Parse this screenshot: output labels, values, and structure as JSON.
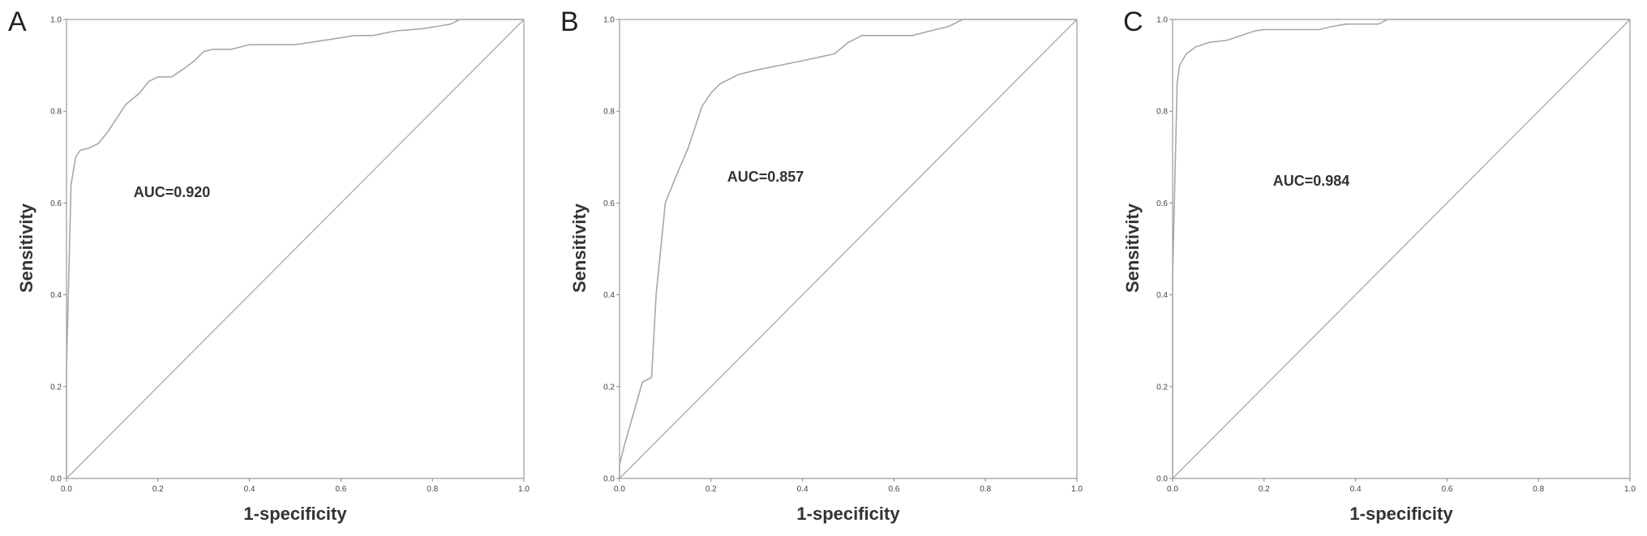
{
  "chart_data": [
    {
      "type": "line",
      "panel": "A",
      "annotation": "AUC=0.920",
      "xlabel": "1-specificity",
      "ylabel": "Sensitivity",
      "xlim": [
        0,
        1
      ],
      "ylim": [
        0,
        1
      ],
      "xticks": [
        "0.0",
        "0.2",
        "0.4",
        "0.6",
        "0.8",
        "1.0"
      ],
      "yticks": [
        "0.0",
        "0.2",
        "0.4",
        "0.6",
        "0.8",
        "1.0"
      ],
      "series": [
        {
          "x": [
            0,
            0,
            0.01,
            0.02,
            0.03,
            0.05,
            0.07,
            0.09,
            0.11,
            0.13,
            0.16,
            0.18,
            0.2,
            0.23,
            0.26,
            0.28,
            0.3,
            0.32,
            0.36,
            0.4,
            0.5,
            0.6,
            0.63,
            0.67,
            0.72,
            0.78,
            0.81,
            0.84,
            0.86,
            1
          ],
          "y": [
            0,
            0.24,
            0.64,
            0.7,
            0.715,
            0.72,
            0.73,
            0.755,
            0.785,
            0.815,
            0.84,
            0.865,
            0.875,
            0.875,
            0.895,
            0.91,
            0.93,
            0.935,
            0.935,
            0.945,
            0.945,
            0.96,
            0.965,
            0.965,
            0.975,
            0.98,
            0.985,
            0.99,
            1.0,
            1.0
          ]
        },
        {
          "x": [
            0,
            1
          ],
          "y": [
            0,
            1
          ]
        }
      ]
    },
    {
      "type": "line",
      "panel": "B",
      "annotation": "AUC=0.857",
      "xlabel": "1-specificity",
      "ylabel": "Sensitivity",
      "xlim": [
        0,
        1
      ],
      "ylim": [
        0,
        1
      ],
      "xticks": [
        "0.0",
        "0.2",
        "0.4",
        "0.6",
        "0.8",
        "1.0"
      ],
      "yticks": [
        "0.0",
        "0.2",
        "0.4",
        "0.6",
        "0.8",
        "1.0"
      ],
      "series": [
        {
          "x": [
            0,
            0,
            0.01,
            0.03,
            0.05,
            0.07,
            0.08,
            0.1,
            0.12,
            0.15,
            0.17,
            0.18,
            0.2,
            0.22,
            0.24,
            0.26,
            0.3,
            0.35,
            0.4,
            0.47,
            0.5,
            0.53,
            0.6,
            0.64,
            0.68,
            0.72,
            0.75,
            1
          ],
          "y": [
            0,
            0.03,
            0.07,
            0.14,
            0.21,
            0.22,
            0.4,
            0.6,
            0.65,
            0.72,
            0.78,
            0.81,
            0.84,
            0.86,
            0.87,
            0.88,
            0.89,
            0.9,
            0.91,
            0.925,
            0.95,
            0.965,
            0.965,
            0.965,
            0.975,
            0.985,
            1.0,
            1.0
          ]
        },
        {
          "x": [
            0,
            1
          ],
          "y": [
            0,
            1
          ]
        }
      ]
    },
    {
      "type": "line",
      "panel": "C",
      "annotation": "AUC=0.984",
      "xlabel": "1-specificity",
      "ylabel": "Sensitivity",
      "xlim": [
        0,
        1
      ],
      "ylim": [
        0,
        1
      ],
      "xticks": [
        "0.0",
        "0.2",
        "0.4",
        "0.6",
        "0.8",
        "1.0"
      ],
      "yticks": [
        "0.0",
        "0.2",
        "0.4",
        "0.6",
        "0.8",
        "1.0"
      ],
      "series": [
        {
          "x": [
            0,
            0,
            0.01,
            0.015,
            0.03,
            0.05,
            0.08,
            0.12,
            0.15,
            0.18,
            0.2,
            0.32,
            0.35,
            0.38,
            0.45,
            0.47,
            1
          ],
          "y": [
            0,
            0.44,
            0.86,
            0.9,
            0.925,
            0.94,
            0.95,
            0.955,
            0.965,
            0.975,
            0.978,
            0.978,
            0.985,
            0.99,
            0.99,
            1.0,
            1.0
          ]
        },
        {
          "x": [
            0,
            1
          ],
          "y": [
            0,
            1
          ]
        }
      ]
    }
  ]
}
